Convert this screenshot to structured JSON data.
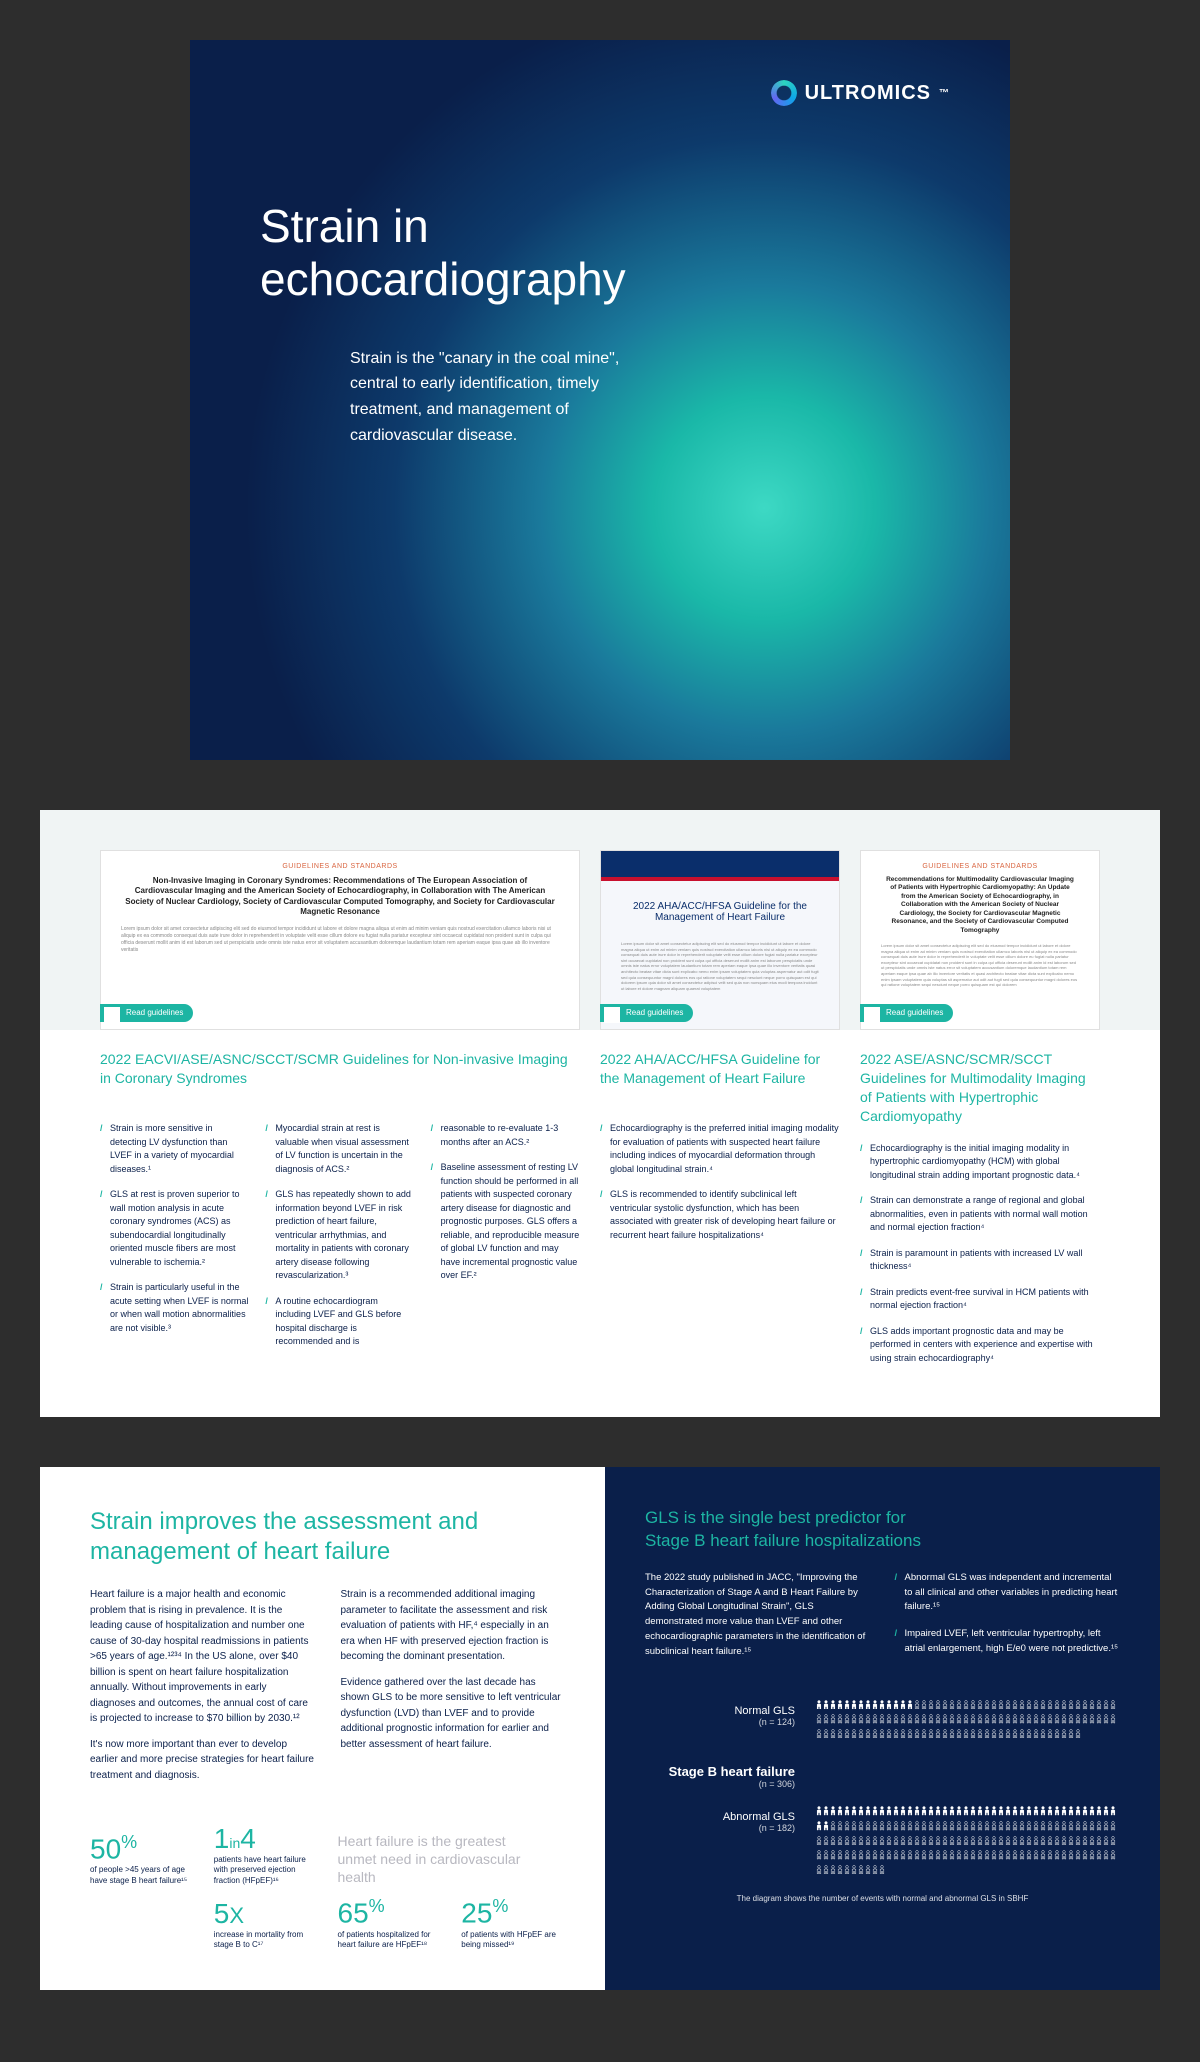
{
  "brand": "ULTROMICS",
  "cover": {
    "title": "Strain in echocardiography",
    "subtitle": "Strain is the \"canary in the coal mine\", central to early identification, timely treatment, and management of cardiovascular disease."
  },
  "page2": {
    "readBadge": "Read guidelines",
    "docs": [
      {
        "labelTop": "GUIDELINES AND STANDARDS",
        "docTitle": "Non-Invasive Imaging in Coronary Syndromes: Recommendations of The European Association of Cardiovascular Imaging and the American Society of Echocardiography, in Collaboration with The American Society of Nuclear Cardiology, Society of Cardiovascular Computed Tomography, and Society for Cardiovascular Magnetic Resonance"
      },
      {
        "labelTop": "",
        "docTitle": "2022 AHA/ACC/HFSA Guideline for the Management of Heart Failure"
      },
      {
        "labelTop": "GUIDELINES AND STANDARDS",
        "docTitle": "Recommendations for Multimodality Cardiovascular Imaging of Patients with Hypertrophic Cardiomyopathy: An Update from the American Society of Echocardiography, in Collaboration with the American Society of Nuclear Cardiology, the Society for Cardiovascular Magnetic Resonance, and the Society of Cardiovascular Computed Tomography"
      }
    ],
    "columns": [
      {
        "title": "2022 EACVI/ASE/ASNC/SCCT/SCMR Guidelines for Non-invasive Imaging in Coronary Syndromes",
        "cols": [
          [
            "Strain is more sensitive in detecting LV dysfunction than LVEF in a variety of myocardial diseases.¹",
            "GLS at rest is proven superior to wall motion analysis in acute coronary syndromes (ACS) as subendocardial longitudinally oriented muscle fibers are most vulnerable to ischemia.²",
            "Strain is particularly useful in the acute setting when LVEF is normal or when wall motion abnormalities are not visible.³"
          ],
          [
            "Myocardial strain at rest is valuable when visual assessment of LV function is uncertain in the diagnosis of ACS.²",
            "GLS has repeatedly shown to add information beyond LVEF in risk prediction of heart failure, ventricular arrhythmias, and mortality in patients with coronary artery disease following revascularization.³",
            "A routine echocardiogram including LVEF and GLS before hospital discharge is recommended and is"
          ],
          [
            "reasonable to re-evaluate 1-3 months after an ACS.²",
            "Baseline assessment of resting LV function should be performed in all patients with suspected coronary artery disease for diagnostic and prognostic purposes. GLS offers a reliable, and reproducible measure of global LV function and may have incremental prognostic value over EF.²"
          ]
        ]
      },
      {
        "title": "2022 AHA/ACC/HFSA Guideline for the Management of Heart Failure",
        "cols": [
          [
            "Echocardiography is the preferred initial imaging modality for evaluation of patients with suspected heart failure including indices of myocardial deformation through global longitudinal strain.⁴",
            "GLS is recommended to identify subclinical left ventricular systolic dysfunction, which has been associated with greater risk of developing heart failure or recurrent heart failure hospitalizations⁴"
          ]
        ]
      },
      {
        "title": "2022 ASE/ASNC/SCMR/SCCT Guidelines for Multimodality Imaging of Patients with Hypertrophic Cardiomyopathy",
        "cols": [
          [
            "Echocardiography is the initial imaging modality in hypertrophic cardiomyopathy (HCM) with global longitudinal strain adding important prognostic data.⁴",
            "Strain can demonstrate a range of regional and global abnormalities, even in patients with normal wall motion and normal ejection fraction⁴",
            "Strain is paramount in patients with increased LV wall thickness⁴",
            "Strain predicts event-free survival in HCM patients with normal ejection fraction⁴",
            "GLS adds important prognostic data and may be performed in centers with experience and expertise with using strain echocardiography⁴"
          ]
        ]
      }
    ]
  },
  "page3": {
    "left": {
      "title": "Strain improves the assessment and management of heart failure",
      "col1_p1": "Heart failure is a major health and economic problem that is rising in prevalence. It is the leading cause of hospitalization and number one cause of 30-day hospital readmissions in patients >65 years of age.¹²³⁴ In the US alone, over $40 billion is spent on heart failure hospitalization annually. Without improvements in early diagnoses and outcomes, the annual cost of care is projected to increase to $70 billion by 2030.¹²",
      "col1_p2": "It's now more important than ever to develop earlier and more precise strategies for heart failure treatment and diagnosis.",
      "col2_p1": "Strain is a recommended additional imaging parameter to facilitate the assessment and risk evaluation of patients with HF,⁴ especially in an era when HF with preserved ejection fraction is becoming the dominant presentation.",
      "col2_p2": "Evidence gathered over the last decade has shown GLS to be more sensitive to left ventricular dysfunction (LVD) than LVEF and to provide additional prognostic information for earlier and better assessment of heart failure.",
      "tagline": "Heart failure is the greatest unmet need in cardiovascular health",
      "stats": [
        {
          "num": "50",
          "suffix": "%",
          "label": "of people >45 years of age have stage B heart failure¹⁵"
        },
        {
          "num": "1",
          "mid": "in",
          "num2": "4",
          "label": "patients have heart failure with preserved ejection fraction (HFpEF)¹⁶"
        },
        {
          "num": "5",
          "suffix": "X",
          "label": "increase in mortality from stage B to C¹⁷"
        },
        {
          "num": "65",
          "suffix": "%",
          "label": "of patients hospitalized for heart failure are HFpEF¹⁸"
        },
        {
          "num": "25",
          "suffix": "%",
          "label": "of patients with HFpEF are being missed¹⁹"
        }
      ]
    },
    "right": {
      "title": "GLS is the single best predictor for Stage B heart failure hospitalizations",
      "col1": "The 2022 study published in JACC, \"Improving the Characterization of Stage A and B Heart Failure by Adding Global Longitudinal Strain\", GLS demonstrated more value than LVEF and other echocardiographic parameters in the identification of subclinical heart failure.¹⁵",
      "col2_p1": "Abnormal GLS was independent and incremental to all clinical and other variables in predicting heart failure.¹⁵",
      "col2_p2": "Impaired LVEF, left ventricular hypertrophy, left atrial enlargement, high E/e0 were not predictive.¹⁵",
      "picto": {
        "normal_label": "Normal GLS",
        "normal_n": "(n = 124)",
        "normal_count": 124,
        "normal_filled": 14,
        "stageb_label": "Stage B heart failure",
        "stageb_n": "(n = 306)",
        "abnormal_label": "Abnormal GLS",
        "abnormal_n": "(n = 182)",
        "abnormal_count": 182,
        "abnormal_filled": 45,
        "caption": "The diagram shows the number of events with normal and abnormal GLS in SBHF"
      }
    }
  }
}
